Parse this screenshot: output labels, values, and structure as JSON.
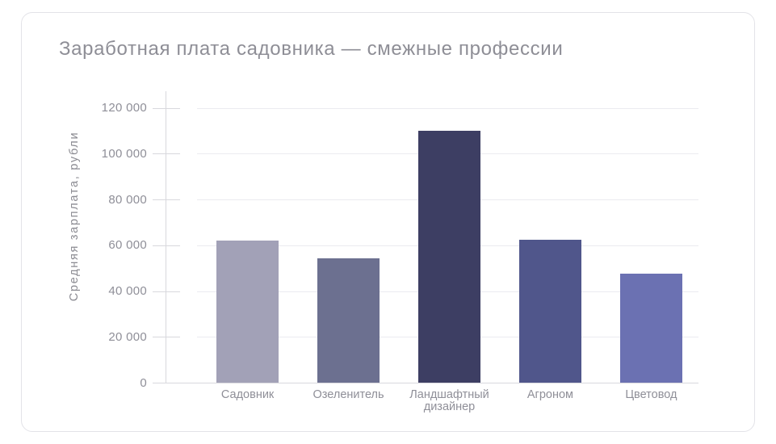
{
  "card": {
    "background": "#ffffff",
    "border_color": "#e3e3e8"
  },
  "chart_data": {
    "type": "bar",
    "title": "Заработная плата садовника — смежные профессии",
    "xlabel": "",
    "ylabel": "Средняя зарплата, рубли",
    "ylim": [
      0,
      120000
    ],
    "ytick_interval": 20000,
    "ytick_labels": [
      "0",
      "20 000",
      "40 000",
      "60 000",
      "80 000",
      "100 000",
      "120 000"
    ],
    "grid": "horizontal",
    "legend": "none",
    "categories": [
      "Садовник",
      "Озеленитель",
      "Ландшафтный дизайнер",
      "Агроном",
      "Цветовод"
    ],
    "category_label_lines": [
      [
        "Садовник"
      ],
      [
        "Озеленитель"
      ],
      [
        "Ландшафтный",
        "дизайнер"
      ],
      [
        "Агроном"
      ],
      [
        "Цветовод"
      ]
    ],
    "values": [
      62000,
      54300,
      110000,
      62500,
      47500
    ],
    "bar_colors": [
      "#a2a1b7",
      "#6c7090",
      "#3d3e63",
      "#50568b",
      "#6b71b2"
    ],
    "title_color": "#8e8e96",
    "tick_label_color": "#8f8f98",
    "axis_color": "#d8d8dd",
    "grid_color": "#ebebf0"
  }
}
